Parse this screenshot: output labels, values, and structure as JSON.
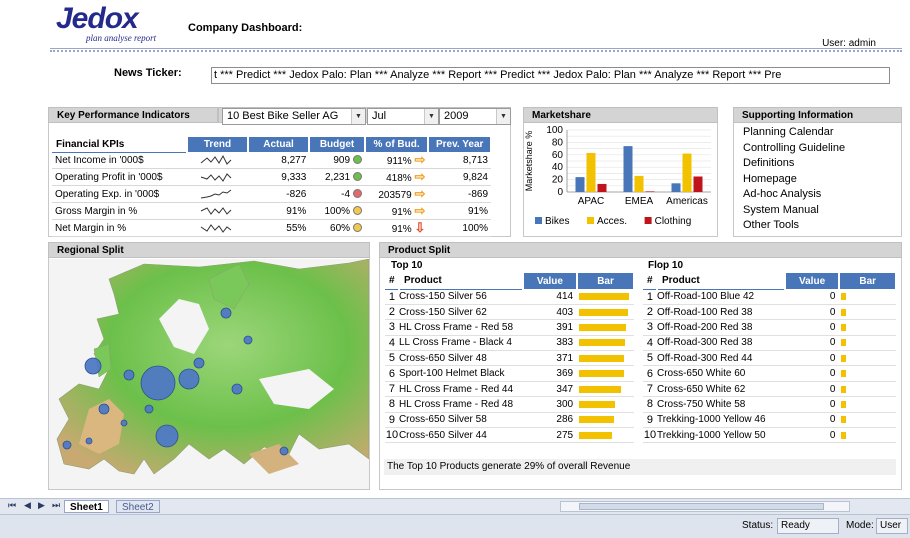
{
  "header": {
    "logo_text": "Jedox",
    "logo_tagline": "plan analyse report",
    "title": "Company Dashboard:",
    "user_label": "User:",
    "user_name": "admin"
  },
  "ticker": {
    "label": "News Ticker:",
    "text": "t *** Predict ***        Jedox Palo: Plan *** Analyze *** Report *** Predict ***        Jedox Palo: Plan *** Analyze *** Report *** Pre"
  },
  "kpi": {
    "header": "Key Performance Indicators",
    "selectors": {
      "product": "10 Best Bike Seller AG",
      "month": "Jul",
      "year": "2009"
    },
    "columns": [
      "Financial KPIs",
      "Trend",
      "Actual",
      "Budget",
      "% of Bud.",
      "Prev. Year"
    ],
    "rows": [
      {
        "name": "Net Income in '000$",
        "actual": "8,277",
        "budget": "909",
        "status": "green",
        "pct": "911%",
        "arrow": "right",
        "prev": "8,713"
      },
      {
        "name": "Operating Profit in '000$",
        "actual": "9,333",
        "budget": "2,231",
        "status": "green",
        "pct": "418%",
        "arrow": "right",
        "prev": "9,824"
      },
      {
        "name": "Operating Exp. in '000$",
        "actual": "-826",
        "budget": "-4",
        "status": "red",
        "pct": "203579",
        "arrow": "right",
        "prev": "-869"
      },
      {
        "name": "Gross Margin in %",
        "actual": "91%",
        "budget": "100%",
        "status": "yellow",
        "pct": "91%",
        "arrow": "right",
        "prev": "91%"
      },
      {
        "name": "Net Margin in %",
        "actual": "55%",
        "budget": "60%",
        "status": "yellow",
        "pct": "91%",
        "arrow": "down",
        "prev": "100%"
      }
    ],
    "colors": {
      "green": "#6cc04a",
      "red": "#e46a6a",
      "yellow": "#f2c94c",
      "arrow": "#f0a020",
      "arrow_down": "#e05030"
    }
  },
  "marketshare": {
    "header": "Marketshare",
    "chart_data": {
      "type": "bar",
      "categories": [
        "APAC",
        "EMEA",
        "Americas"
      ],
      "series": [
        {
          "name": "Bikes",
          "values": [
            24,
            74,
            14
          ],
          "color": "#4876b8"
        },
        {
          "name": "Acces.",
          "values": [
            63,
            26,
            62
          ],
          "color": "#f2c200"
        },
        {
          "name": "Clothing",
          "values": [
            13,
            1,
            25
          ],
          "color": "#c0141c"
        }
      ],
      "ylabel": "Marketshare %",
      "ylim": [
        0,
        100
      ],
      "yticks": [
        0,
        10,
        20,
        30,
        40,
        50,
        60,
        70,
        80,
        90,
        100
      ],
      "legend": "bottom",
      "grid": true
    }
  },
  "supporting": {
    "header": "Supporting Information",
    "items": [
      "Planning Calendar",
      "Controlling Guideline",
      "Definitions",
      "Homepage",
      "Ad-hoc Analysis",
      "System Manual",
      "Other Tools"
    ]
  },
  "regional": {
    "header": "Regional Split"
  },
  "products": {
    "header": "Product Split",
    "top_title": "Top 10",
    "flop_title": "Flop 10",
    "columns": [
      "#",
      "Product",
      "Value",
      "Bar"
    ],
    "top": [
      {
        "rank": "1",
        "name": "Cross-150 Silver 56",
        "value": "414"
      },
      {
        "rank": "2",
        "name": "Cross-150 Silver 62",
        "value": "403"
      },
      {
        "rank": "3",
        "name": "HL Cross Frame - Red 58",
        "value": "391"
      },
      {
        "rank": "4",
        "name": "LL Cross Frame - Black 4",
        "value": "383"
      },
      {
        "rank": "5",
        "name": "Cross-650 Silver 48",
        "value": "371"
      },
      {
        "rank": "6",
        "name": "Sport-100 Helmet Black",
        "value": "369"
      },
      {
        "rank": "7",
        "name": "HL Cross Frame - Red 44",
        "value": "347"
      },
      {
        "rank": "8",
        "name": "HL Cross Frame - Red 48",
        "value": "300"
      },
      {
        "rank": "9",
        "name": "Cross-650 Silver 58",
        "value": "286"
      },
      {
        "rank": "10",
        "name": "Cross-650 Silver 44",
        "value": "275"
      }
    ],
    "flop": [
      {
        "rank": "1",
        "name": "Off-Road-100 Blue 42",
        "value": "0"
      },
      {
        "rank": "2",
        "name": "Off-Road-100 Red 38",
        "value": "0"
      },
      {
        "rank": "3",
        "name": "Off-Road-200 Red 38",
        "value": "0"
      },
      {
        "rank": "4",
        "name": "Off-Road-300 Red 38",
        "value": "0"
      },
      {
        "rank": "5",
        "name": "Off-Road-300 Red 44",
        "value": "0"
      },
      {
        "rank": "6",
        "name": "Cross-650 White 60",
        "value": "0"
      },
      {
        "rank": "7",
        "name": "Cross-650 White 62",
        "value": "0"
      },
      {
        "rank": "8",
        "name": "Cross-750 White 58",
        "value": "0"
      },
      {
        "rank": "9",
        "name": "Trekking-1000 Yellow 46",
        "value": "0"
      },
      {
        "rank": "10",
        "name": "Trekking-1000 Yellow 50",
        "value": "0"
      }
    ],
    "note": "The Top 10 Products generate 29% of overall Revenue"
  },
  "sheets": {
    "tabs": [
      "Sheet1",
      "Sheet2"
    ],
    "active": "Sheet1"
  },
  "status": {
    "status_label": "Status:",
    "status_value": "Ready",
    "mode_label": "Mode:",
    "mode_value": "User"
  }
}
